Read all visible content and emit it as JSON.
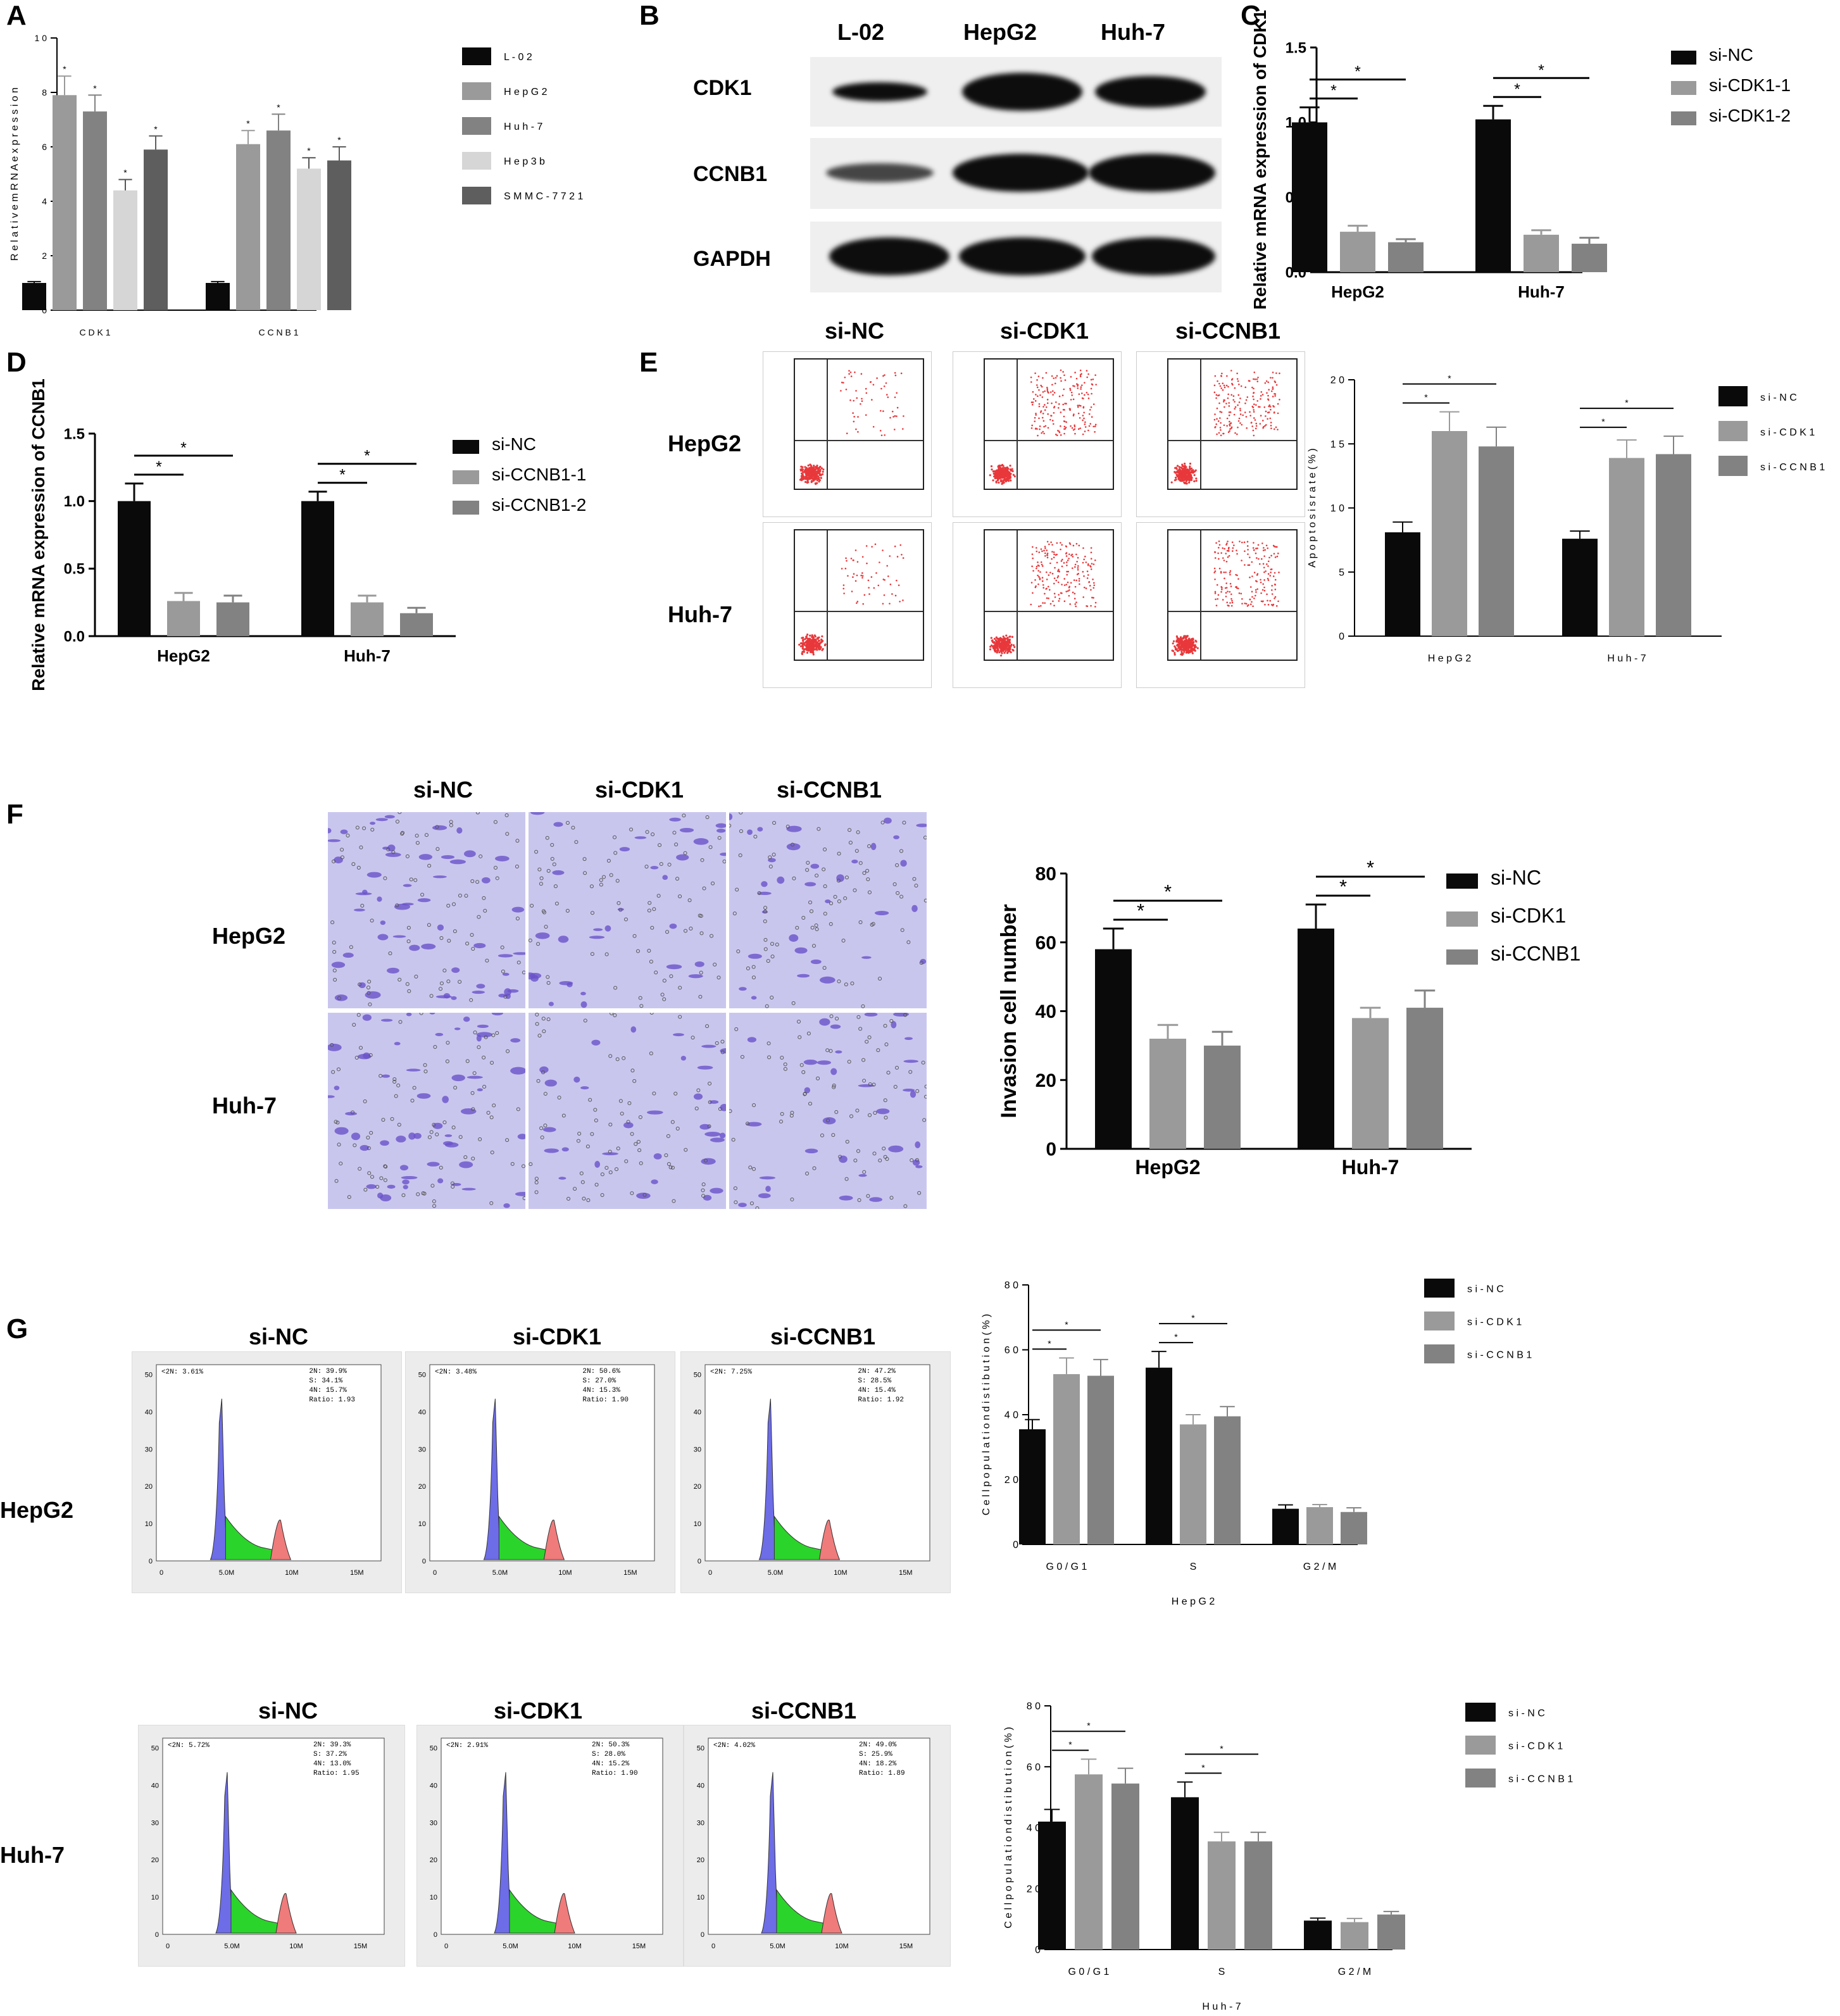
{
  "panels": {
    "a": "A",
    "b": "B",
    "c": "C",
    "d": "D",
    "e": "E",
    "f": "F",
    "g": "G"
  },
  "colors": {
    "black": "#0a0a0a",
    "grey1": "#9a9a9a",
    "grey2": "#828282",
    "grey3": "#d6d6d6",
    "grey4": "#5e5e5e",
    "flow_dot": "#e8383b",
    "violet_bg": "#c9c6ee",
    "violet_cell": "#6a52c9",
    "cc_blue": "#6d6de8",
    "cc_green": "#2bd42b",
    "cc_red": "#f07b7b"
  },
  "western_blot": {
    "lanes": [
      "L-02",
      "HepG2",
      "Huh-7"
    ],
    "proteins": [
      "CDK1",
      "CCNB1",
      "GAPDH"
    ]
  },
  "flow": {
    "columns": [
      "si-NC",
      "si-CDK1",
      "si-CCNB1"
    ],
    "rows": [
      "HepG2",
      "Huh-7"
    ]
  },
  "invasion_images": {
    "columns": [
      "si-NC",
      "si-CDK1",
      "si-CCNB1"
    ],
    "rows": [
      "HepG2",
      "Huh-7"
    ]
  },
  "cell_cycle": {
    "rows": [
      {
        "name": "HepG2",
        "columns": [
          "si-NC",
          "si-CDK1",
          "si-CCNB1"
        ],
        "tags": [
          "<2N: 3.61%",
          "<2N: 3.48%",
          "<2N: 7.25%"
        ],
        "stats": [
          "2N: 39.9%\nS: 34.1%\n4N: 15.7%\nRatio: 1.93",
          "2N: 50.6%\nS: 27.0%\n4N: 15.3%\nRatio: 1.90",
          "2N: 47.2%\nS: 28.5%\n4N: 15.4%\nRatio: 1.92"
        ]
      },
      {
        "name": "Huh-7",
        "columns": [
          "si-NC",
          "si-CDK1",
          "si-CCNB1"
        ],
        "tags": [
          "<2N: 5.72%",
          "<2N: 2.91%",
          "<2N: 4.02%"
        ],
        "stats": [
          "2N: 39.3%\nS: 37.2%\n4N: 13.0%\nRatio: 1.95",
          "2N: 50.3%\nS: 28.0%\n4N: 15.2%\nRatio: 1.90",
          "2N: 49.0%\nS: 25.9%\n4N: 18.2%\nRatio: 1.89"
        ]
      }
    ],
    "x_ticks": [
      "0",
      "5.0M",
      "10M",
      "15M"
    ],
    "y_ticks": [
      "0",
      "10",
      "20",
      "30",
      "40",
      "50"
    ]
  },
  "chart_data": [
    {
      "id": "A",
      "type": "bar",
      "categories": [
        "CDK1",
        "CCNB1"
      ],
      "series": [
        {
          "name": "L-02",
          "values": [
            1.0,
            1.0
          ],
          "errors": [
            0.05,
            0.05
          ],
          "color": "#0a0a0a"
        },
        {
          "name": "HepG2",
          "values": [
            7.9,
            6.1
          ],
          "errors": [
            0.7,
            0.5
          ],
          "color": "#9a9a9a"
        },
        {
          "name": "Huh-7",
          "values": [
            7.3,
            6.6
          ],
          "errors": [
            0.6,
            0.6
          ],
          "color": "#828282"
        },
        {
          "name": "Hep3b",
          "values": [
            4.4,
            5.2
          ],
          "errors": [
            0.4,
            0.4
          ],
          "color": "#d6d6d6"
        },
        {
          "name": "SMMC-7721",
          "values": [
            5.9,
            5.5
          ],
          "errors": [
            0.5,
            0.5
          ],
          "color": "#5e5e5e"
        }
      ],
      "ylabel": "Relative mRNA expression",
      "ylim": [
        0,
        10
      ],
      "yticks": [
        "0",
        "2",
        "4",
        "6",
        "8",
        "10"
      ],
      "annotations": [
        "*"
      ],
      "legend": "right",
      "spaced": true
    },
    {
      "id": "C",
      "type": "bar",
      "categories": [
        "HepG2",
        "Huh-7"
      ],
      "series": [
        {
          "name": "si-NC",
          "values": [
            1.0,
            1.02
          ],
          "errors": [
            0.1,
            0.09
          ],
          "color": "#0a0a0a"
        },
        {
          "name": "si-CDK1-1",
          "values": [
            0.27,
            0.25
          ],
          "errors": [
            0.04,
            0.03
          ],
          "color": "#9a9a9a"
        },
        {
          "name": "si-CDK1-2",
          "values": [
            0.2,
            0.19
          ],
          "errors": [
            0.02,
            0.04
          ],
          "color": "#828282"
        }
      ],
      "ylabel": "Relative mRNA expression of CDK1",
      "ylim": [
        0,
        1.5
      ],
      "yticks": [
        "0.0",
        "0.5",
        "1.0",
        "1.5"
      ],
      "annotations": [
        "*"
      ],
      "legend": "right",
      "spaced": false
    },
    {
      "id": "D",
      "type": "bar",
      "categories": [
        "HepG2",
        "Huh-7"
      ],
      "series": [
        {
          "name": "si-NC",
          "values": [
            1.0,
            1.0
          ],
          "errors": [
            0.13,
            0.07
          ],
          "color": "#0a0a0a"
        },
        {
          "name": "si-CCNB1-1",
          "values": [
            0.26,
            0.25
          ],
          "errors": [
            0.06,
            0.05
          ],
          "color": "#9a9a9a"
        },
        {
          "name": "si-CCNB1-2",
          "values": [
            0.25,
            0.17
          ],
          "errors": [
            0.05,
            0.04
          ],
          "color": "#828282"
        }
      ],
      "ylabel": "Relative mRNA expression of CCNB1",
      "ylim": [
        0,
        1.5
      ],
      "yticks": [
        "0.0",
        "0.5",
        "1.0",
        "1.5"
      ],
      "annotations": [
        "*"
      ],
      "legend": "right",
      "spaced": false
    },
    {
      "id": "E",
      "type": "bar",
      "categories": [
        "HepG2",
        "Huh-7"
      ],
      "series": [
        {
          "name": "si-NC",
          "values": [
            8.1,
            7.6
          ],
          "errors": [
            0.8,
            0.6
          ],
          "color": "#0a0a0a"
        },
        {
          "name": "si-CDK1",
          "values": [
            16.0,
            13.9
          ],
          "errors": [
            1.5,
            1.4
          ],
          "color": "#9a9a9a"
        },
        {
          "name": "si-CCNB1",
          "values": [
            14.8,
            14.2
          ],
          "errors": [
            1.5,
            1.4
          ],
          "color": "#828282"
        }
      ],
      "ylabel": "Apoptosis rate (%)",
      "ylim": [
        0,
        20
      ],
      "yticks": [
        "0",
        "5",
        "10",
        "15",
        "20"
      ],
      "annotations": [
        "*"
      ],
      "legend": "right",
      "spaced": true
    },
    {
      "id": "F",
      "type": "bar",
      "categories": [
        "HepG2",
        "Huh-7"
      ],
      "series": [
        {
          "name": "si-NC",
          "values": [
            58,
            64
          ],
          "errors": [
            6,
            7
          ],
          "color": "#0a0a0a"
        },
        {
          "name": "si-CDK1",
          "values": [
            32,
            38
          ],
          "errors": [
            4,
            3
          ],
          "color": "#9a9a9a"
        },
        {
          "name": "si-CCNB1",
          "values": [
            30,
            41
          ],
          "errors": [
            4,
            5
          ],
          "color": "#828282"
        }
      ],
      "ylabel": "Invasion cell number",
      "ylim": [
        0,
        80
      ],
      "yticks": [
        "0",
        "20",
        "40",
        "60",
        "80"
      ],
      "annotations": [
        "*"
      ],
      "legend": "right",
      "spaced": false
    },
    {
      "id": "G1",
      "type": "bar",
      "categories": [
        "G0/G1",
        "S",
        "G2/M"
      ],
      "series": [
        {
          "name": "si-NC",
          "values": [
            35.5,
            54.5,
            11.0
          ],
          "errors": [
            3,
            5,
            1.2
          ],
          "color": "#0a0a0a"
        },
        {
          "name": "si-CDK1",
          "values": [
            52.5,
            37.0,
            11.5
          ],
          "errors": [
            5,
            3,
            0.8
          ],
          "color": "#9a9a9a"
        },
        {
          "name": "si-CCNB1",
          "values": [
            52.0,
            39.5,
            10.0
          ],
          "errors": [
            5,
            3,
            1.3
          ],
          "color": "#828282"
        }
      ],
      "xlabel": "HepG2",
      "ylabel": "Cell population distibution (%)",
      "ylim": [
        0,
        80
      ],
      "yticks": [
        "0",
        "20",
        "40",
        "60",
        "80"
      ],
      "annotations": [
        "*"
      ],
      "legend": "right",
      "spaced": true
    },
    {
      "id": "G2",
      "type": "bar",
      "categories": [
        "G0/G1",
        "S",
        "G2/M"
      ],
      "series": [
        {
          "name": "si-NC",
          "values": [
            42.0,
            50.0,
            9.5
          ],
          "errors": [
            4,
            5,
            0.8
          ],
          "color": "#0a0a0a"
        },
        {
          "name": "si-CDK1",
          "values": [
            57.5,
            35.5,
            9.0
          ],
          "errors": [
            5,
            3,
            1.2
          ],
          "color": "#9a9a9a"
        },
        {
          "name": "si-CCNB1",
          "values": [
            54.5,
            35.5,
            11.5
          ],
          "errors": [
            5,
            3,
            1.0
          ],
          "color": "#828282"
        }
      ],
      "xlabel": "Huh-7",
      "ylabel": "Cell population distibution (%)",
      "ylim": [
        0,
        80
      ],
      "yticks": [
        "0",
        "20",
        "40",
        "60",
        "80"
      ],
      "annotations": [
        "*"
      ],
      "legend": "right",
      "spaced": true
    }
  ]
}
